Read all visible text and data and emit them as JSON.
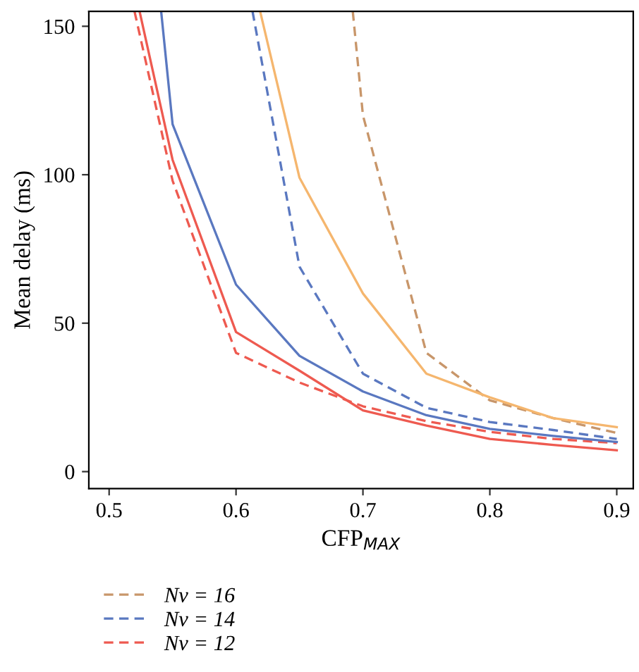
{
  "chart_data": {
    "type": "line",
    "xlabel": "CFP$_{MAX}$",
    "ylabel": "Mean delay (ms)",
    "xlim": [
      0.484,
      0.913
    ],
    "ylim": [
      -5.7,
      155
    ],
    "xticks": [
      0.5,
      0.6,
      0.7,
      0.8,
      0.9
    ],
    "yticks": [
      0,
      50,
      100,
      150
    ],
    "grid": false,
    "legend": "bottom left",
    "marker": "none",
    "series": [
      {
        "name": "Nν = 16",
        "color": "#c8966a",
        "line_style": "dashed",
        "x": [
          0.692,
          0.7,
          0.75,
          0.8,
          0.85,
          0.9
        ],
        "values": [
          155,
          120,
          40,
          24,
          18,
          13
        ]
      },
      {
        "name": "Nν = 14",
        "color": "#5a78c0",
        "line_style": "dashed",
        "x": [
          0.613,
          0.65,
          0.7,
          0.75,
          0.8,
          0.85,
          0.9
        ],
        "values": [
          155,
          69,
          33,
          21.5,
          16.7,
          14,
          11
        ]
      },
      {
        "name": "Nν = 12",
        "color": "#ee5a50",
        "line_style": "dashed",
        "x": [
          0.52,
          0.55,
          0.6,
          0.65,
          0.7,
          0.75,
          0.8,
          0.85,
          0.9
        ],
        "values": [
          155,
          98,
          40,
          30,
          22,
          17,
          13.4,
          11,
          9.6
        ]
      },
      {
        "color": "#f5b66e",
        "line_style": "solid",
        "x": [
          0.619,
          0.65,
          0.7,
          0.75,
          0.8,
          0.85,
          0.9
        ],
        "values": [
          155,
          99,
          60,
          33,
          25,
          18,
          15
        ]
      },
      {
        "color": "#5a78c0",
        "line_style": "solid",
        "x": [
          0.541,
          0.55,
          0.6,
          0.65,
          0.7,
          0.75,
          0.8,
          0.85,
          0.9
        ],
        "values": [
          155,
          117,
          63,
          39,
          27,
          19,
          14.4,
          12,
          10
        ]
      },
      {
        "color": "#ee5a50",
        "line_style": "solid",
        "x": [
          0.524,
          0.55,
          0.6,
          0.65,
          0.7,
          0.75,
          0.8,
          0.85,
          0.9
        ],
        "values": [
          155,
          105,
          47,
          34,
          20.6,
          15.5,
          11,
          9,
          7.2
        ]
      }
    ]
  }
}
